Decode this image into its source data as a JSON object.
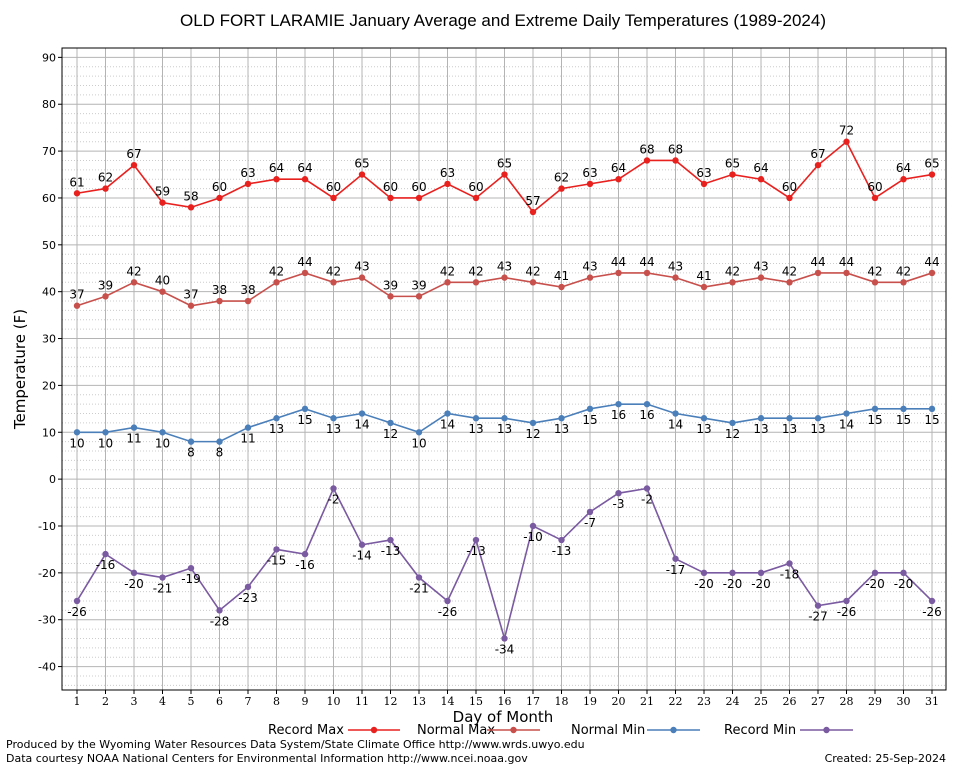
{
  "chart_data": {
    "type": "line",
    "title": "OLD FORT LARAMIE January Average and Extreme Daily Temperatures (1989-2024)",
    "xlabel": "Day of Month",
    "ylabel": "Temperature (F)",
    "ylim": [
      -45,
      92
    ],
    "yticks": [
      -40,
      -30,
      -20,
      -10,
      0,
      10,
      20,
      30,
      40,
      50,
      60,
      70,
      80,
      90
    ],
    "x": [
      1,
      2,
      3,
      4,
      5,
      6,
      7,
      8,
      9,
      10,
      11,
      12,
      13,
      14,
      15,
      16,
      17,
      18,
      19,
      20,
      21,
      22,
      23,
      24,
      25,
      26,
      27,
      28,
      29,
      30,
      31
    ],
    "grid": true,
    "legend": "bottom",
    "series": [
      {
        "name": "Record Max",
        "color": "#e8211f",
        "values": [
          61,
          62,
          67,
          59,
          58,
          60,
          63,
          64,
          64,
          60,
          65,
          60,
          60,
          63,
          60,
          65,
          57,
          62,
          63,
          64,
          68,
          68,
          63,
          65,
          64,
          60,
          67,
          72,
          60,
          64,
          65
        ]
      },
      {
        "name": "Normal Max",
        "color": "#c8504c",
        "values": [
          37,
          39,
          42,
          40,
          37,
          38,
          38,
          42,
          44,
          42,
          43,
          39,
          39,
          42,
          42,
          43,
          42,
          41,
          43,
          44,
          44,
          43,
          41,
          42,
          43,
          42,
          44,
          44,
          42,
          42,
          44
        ]
      },
      {
        "name": "Normal Min",
        "color": "#4a7fba",
        "values": [
          10,
          10,
          11,
          10,
          8,
          8,
          11,
          13,
          15,
          13,
          14,
          12,
          10,
          14,
          13,
          13,
          12,
          13,
          15,
          16,
          16,
          14,
          13,
          12,
          13,
          13,
          13,
          14,
          15,
          15,
          15
        ]
      },
      {
        "name": "Record Min",
        "color": "#7a5aa0",
        "values": [
          -26,
          -16,
          -20,
          -21,
          -19,
          -28,
          -23,
          -15,
          -16,
          -2,
          -14,
          -13,
          -21,
          -26,
          -13,
          -34,
          -10,
          -13,
          -7,
          -3,
          -2,
          -17,
          -20,
          -20,
          -20,
          -18,
          -27,
          -26,
          -20,
          -20,
          -26
        ]
      }
    ]
  },
  "footer": {
    "line1": "Produced by the Wyoming Water Resources Data System/State Climate Office http://www.wrds.uwyo.edu",
    "line2": "Data courtesy NOAA National Centers for Environmental Information http://www.ncei.noaa.gov",
    "created": "Created:  25-Sep-2024"
  }
}
